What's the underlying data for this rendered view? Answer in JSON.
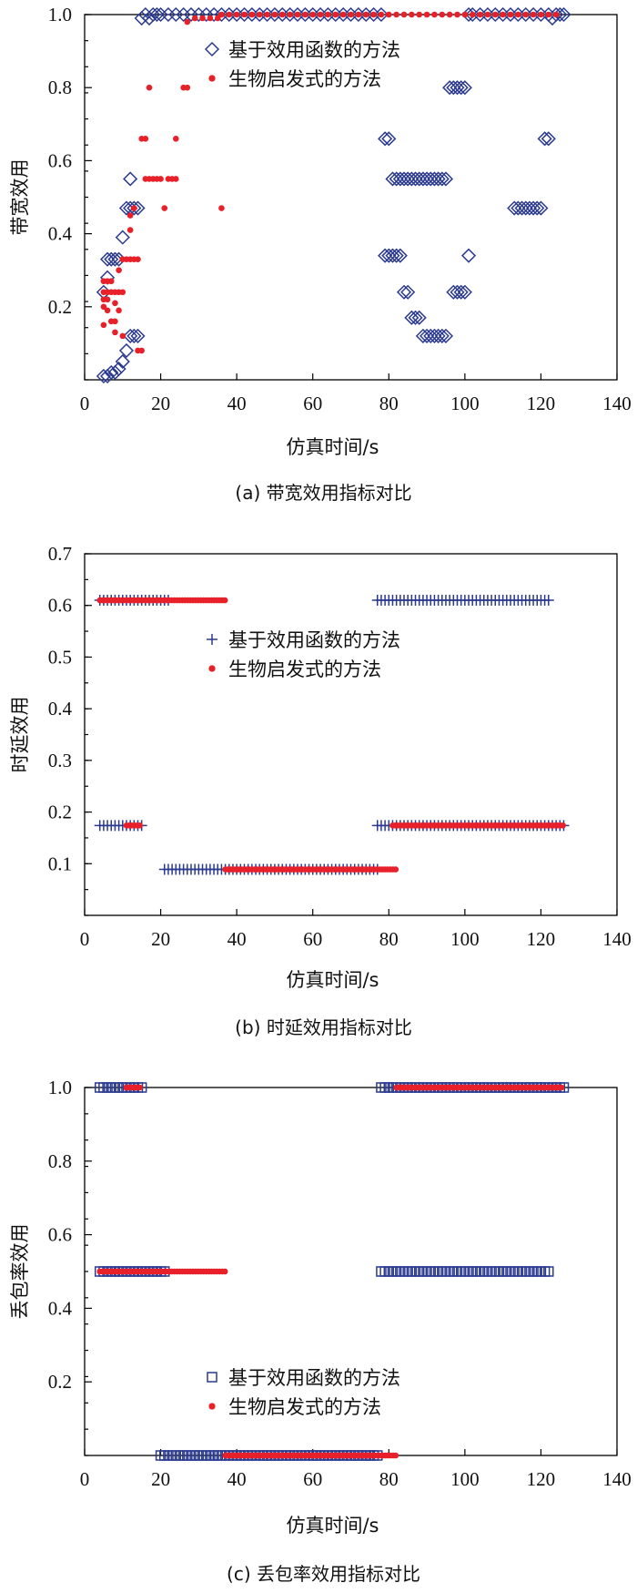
{
  "chart_data": [
    {
      "type": "scatter",
      "panel": "a",
      "caption": "(a) 带宽效用指标对比",
      "xlabel": "仿真时间/s",
      "ylabel": "带宽效用",
      "xlim": [
        0,
        140
      ],
      "ylim": [
        0,
        1.0
      ],
      "xticks": [
        "0",
        "20",
        "40",
        "60",
        "80",
        "100",
        "120",
        "140"
      ],
      "yticks": [
        "0.2",
        "0.4",
        "0.6",
        "0.8",
        "1.0"
      ],
      "yticks_values": [
        0.2,
        0.4,
        0.6,
        0.8,
        1.0
      ],
      "legend_position": "top-center",
      "series": [
        {
          "name": "基于效用函数的方法",
          "marker": "diamond",
          "color": "#2b3a8f",
          "points": [
            [
              5,
              0.01
            ],
            [
              6,
              0.01
            ],
            [
              7,
              0.02
            ],
            [
              8,
              0.02
            ],
            [
              9,
              0.03
            ],
            [
              10,
              0.05
            ],
            [
              11,
              0.08
            ],
            [
              12,
              0.12
            ],
            [
              13,
              0.12
            ],
            [
              14,
              0.12
            ],
            [
              5,
              0.24
            ],
            [
              6,
              0.28
            ],
            [
              6,
              0.33
            ],
            [
              7,
              0.33
            ],
            [
              8,
              0.33
            ],
            [
              9,
              0.33
            ],
            [
              10,
              0.39
            ],
            [
              11,
              0.47
            ],
            [
              12,
              0.47
            ],
            [
              13,
              0.47
            ],
            [
              14,
              0.47
            ],
            [
              12,
              0.55
            ],
            [
              15,
              0.99
            ],
            [
              16,
              1.0
            ],
            [
              17,
              0.99
            ],
            [
              18,
              1.0
            ],
            [
              19,
              1.0
            ],
            [
              20,
              1.0
            ],
            [
              22,
              1.0
            ],
            [
              24,
              1.0
            ],
            [
              26,
              1.0
            ],
            [
              28,
              1.0
            ],
            [
              30,
              1.0
            ],
            [
              32,
              1.0
            ],
            [
              34,
              1.0
            ],
            [
              36,
              1.0
            ],
            [
              38,
              1.0
            ],
            [
              40,
              1.0
            ],
            [
              42,
              1.0
            ],
            [
              44,
              1.0
            ],
            [
              46,
              1.0
            ],
            [
              48,
              1.0
            ],
            [
              50,
              1.0
            ],
            [
              52,
              1.0
            ],
            [
              54,
              1.0
            ],
            [
              56,
              1.0
            ],
            [
              58,
              1.0
            ],
            [
              60,
              1.0
            ],
            [
              62,
              1.0
            ],
            [
              64,
              1.0
            ],
            [
              66,
              1.0
            ],
            [
              68,
              1.0
            ],
            [
              70,
              1.0
            ],
            [
              72,
              1.0
            ],
            [
              74,
              1.0
            ],
            [
              76,
              1.0
            ],
            [
              78,
              1.0
            ],
            [
              79,
              0.66
            ],
            [
              80,
              0.66
            ],
            [
              79,
              0.34
            ],
            [
              80,
              0.34
            ],
            [
              81,
              0.34
            ],
            [
              82,
              0.34
            ],
            [
              83,
              0.34
            ],
            [
              81,
              0.55
            ],
            [
              82,
              0.55
            ],
            [
              83,
              0.55
            ],
            [
              84,
              0.55
            ],
            [
              85,
              0.55
            ],
            [
              86,
              0.55
            ],
            [
              87,
              0.55
            ],
            [
              88,
              0.55
            ],
            [
              89,
              0.55
            ],
            [
              90,
              0.55
            ],
            [
              91,
              0.55
            ],
            [
              92,
              0.55
            ],
            [
              93,
              0.55
            ],
            [
              94,
              0.55
            ],
            [
              95,
              0.55
            ],
            [
              84,
              0.24
            ],
            [
              85,
              0.24
            ],
            [
              86,
              0.17
            ],
            [
              87,
              0.17
            ],
            [
              88,
              0.17
            ],
            [
              89,
              0.12
            ],
            [
              90,
              0.12
            ],
            [
              91,
              0.12
            ],
            [
              92,
              0.12
            ],
            [
              93,
              0.12
            ],
            [
              94,
              0.12
            ],
            [
              95,
              0.12
            ],
            [
              96,
              0.8
            ],
            [
              97,
              0.8
            ],
            [
              98,
              0.8
            ],
            [
              99,
              0.8
            ],
            [
              100,
              0.8
            ],
            [
              97,
              0.24
            ],
            [
              98,
              0.24
            ],
            [
              99,
              0.24
            ],
            [
              100,
              0.24
            ],
            [
              101,
              0.34
            ],
            [
              101,
              1.0
            ],
            [
              102,
              1.0
            ],
            [
              104,
              1.0
            ],
            [
              106,
              1.0
            ],
            [
              108,
              1.0
            ],
            [
              110,
              1.0
            ],
            [
              112,
              1.0
            ],
            [
              114,
              1.0
            ],
            [
              116,
              1.0
            ],
            [
              118,
              1.0
            ],
            [
              120,
              1.0
            ],
            [
              122,
              1.0
            ],
            [
              123,
              0.99
            ],
            [
              124,
              1.0
            ],
            [
              125,
              1.0
            ],
            [
              126,
              1.0
            ],
            [
              113,
              0.47
            ],
            [
              114,
              0.47
            ],
            [
              115,
              0.47
            ],
            [
              116,
              0.47
            ],
            [
              117,
              0.47
            ],
            [
              118,
              0.47
            ],
            [
              119,
              0.47
            ],
            [
              120,
              0.47
            ],
            [
              121,
              0.66
            ],
            [
              122,
              0.66
            ]
          ]
        },
        {
          "name": "生物启发式的方法",
          "marker": "star",
          "color": "#e8202a",
          "points": [
            [
              5,
              0.15
            ],
            [
              5,
              0.2
            ],
            [
              5,
              0.22
            ],
            [
              5,
              0.24
            ],
            [
              5,
              0.27
            ],
            [
              6,
              0.19
            ],
            [
              6,
              0.22
            ],
            [
              6,
              0.24
            ],
            [
              6,
              0.27
            ],
            [
              7,
              0.16
            ],
            [
              7,
              0.24
            ],
            [
              7,
              0.27
            ],
            [
              8,
              0.13
            ],
            [
              8,
              0.16
            ],
            [
              8,
              0.21
            ],
            [
              8,
              0.24
            ],
            [
              9,
              0.19
            ],
            [
              9,
              0.24
            ],
            [
              9,
              0.3
            ],
            [
              10,
              0.12
            ],
            [
              10,
              0.24
            ],
            [
              10,
              0.33
            ],
            [
              11,
              0.33
            ],
            [
              12,
              0.33
            ],
            [
              12,
              0.41
            ],
            [
              12,
              0.45
            ],
            [
              13,
              0.33
            ],
            [
              13,
              0.47
            ],
            [
              14,
              0.08
            ],
            [
              14,
              0.33
            ],
            [
              15,
              0.08
            ],
            [
              15,
              0.66
            ],
            [
              16,
              0.55
            ],
            [
              16,
              0.66
            ],
            [
              17,
              0.55
            ],
            [
              18,
              0.55
            ],
            [
              19,
              0.55
            ],
            [
              20,
              0.55
            ],
            [
              21,
              0.47
            ],
            [
              22,
              0.55
            ],
            [
              23,
              0.55
            ],
            [
              24,
              0.55
            ],
            [
              24,
              0.66
            ],
            [
              26,
              0.8
            ],
            [
              27,
              0.8
            ],
            [
              17,
              0.8
            ],
            [
              36,
              0.47
            ],
            [
              27,
              0.98
            ],
            [
              29,
              0.99
            ],
            [
              31,
              0.99
            ],
            [
              33,
              0.99
            ],
            [
              35,
              0.99
            ],
            [
              36,
              1.0
            ],
            [
              38,
              1.0
            ],
            [
              40,
              1.0
            ],
            [
              42,
              1.0
            ],
            [
              44,
              1.0
            ],
            [
              46,
              1.0
            ],
            [
              48,
              1.0
            ],
            [
              50,
              1.0
            ],
            [
              52,
              1.0
            ],
            [
              54,
              1.0
            ],
            [
              56,
              1.0
            ],
            [
              58,
              1.0
            ],
            [
              60,
              1.0
            ],
            [
              62,
              1.0
            ],
            [
              64,
              1.0
            ],
            [
              66,
              1.0
            ],
            [
              68,
              1.0
            ],
            [
              70,
              1.0
            ],
            [
              72,
              1.0
            ],
            [
              74,
              1.0
            ],
            [
              76,
              1.0
            ],
            [
              78,
              1.0
            ],
            [
              80,
              1.0
            ],
            [
              82,
              1.0
            ],
            [
              84,
              1.0
            ],
            [
              86,
              1.0
            ],
            [
              88,
              1.0
            ],
            [
              90,
              1.0
            ],
            [
              92,
              1.0
            ],
            [
              94,
              1.0
            ],
            [
              96,
              1.0
            ],
            [
              98,
              1.0
            ],
            [
              100,
              1.0
            ],
            [
              102,
              1.0
            ],
            [
              104,
              1.0
            ],
            [
              106,
              1.0
            ],
            [
              108,
              1.0
            ],
            [
              110,
              1.0
            ],
            [
              112,
              1.0
            ],
            [
              114,
              1.0
            ],
            [
              116,
              1.0
            ],
            [
              118,
              1.0
            ],
            [
              120,
              1.0
            ],
            [
              122,
              1.0
            ],
            [
              124,
              1.0
            ]
          ]
        }
      ]
    },
    {
      "type": "scatter",
      "panel": "b",
      "caption": "(b) 时延效用指标对比",
      "xlabel": "仿真时间/s",
      "ylabel": "时延效用",
      "xlim": [
        0,
        140
      ],
      "ylim": [
        0,
        0.7
      ],
      "xticks": [
        "0",
        "20",
        "40",
        "60",
        "80",
        "100",
        "120",
        "140"
      ],
      "yticks": [
        "0.1",
        "0.2",
        "0.3",
        "0.4",
        "0.5",
        "0.6",
        "0.7"
      ],
      "yticks_values": [
        0.1,
        0.2,
        0.3,
        0.4,
        0.5,
        0.6,
        0.7
      ],
      "legend_position": "center",
      "series": [
        {
          "name": "基于效用函数的方法",
          "marker": "plus",
          "color": "#2b3a8f",
          "segments": [
            {
              "x": [
                4,
                22
              ],
              "y": 0.61
            },
            {
              "x": [
                4,
                15
              ],
              "y": 0.174
            },
            {
              "x": [
                21,
                77
              ],
              "y": 0.089
            },
            {
              "x": [
                77,
                122
              ],
              "y": 0.61
            },
            {
              "x": [
                77,
                126
              ],
              "y": 0.174
            }
          ]
        },
        {
          "name": "生物启发式的方法",
          "marker": "star",
          "color": "#e8202a",
          "segments": [
            {
              "x": [
                4,
                37
              ],
              "y": 0.61
            },
            {
              "x": [
                11,
                15
              ],
              "y": 0.174
            },
            {
              "x": [
                37,
                82
              ],
              "y": 0.089
            },
            {
              "x": [
                81,
                126
              ],
              "y": 0.174
            }
          ]
        }
      ]
    },
    {
      "type": "scatter",
      "panel": "c",
      "caption": "(c) 丢包率效用指标对比",
      "xlabel": "仿真时间/s",
      "ylabel": "丢包率效用",
      "xlim": [
        0,
        140
      ],
      "ylim": [
        0,
        1.0
      ],
      "xticks": [
        "0",
        "20",
        "40",
        "60",
        "80",
        "100",
        "120",
        "140"
      ],
      "yticks": [
        "0.2",
        "0.4",
        "0.6",
        "0.8",
        "1.0"
      ],
      "yticks_values": [
        0.2,
        0.4,
        0.6,
        0.8,
        1.0
      ],
      "legend_position": "bottom-center",
      "series": [
        {
          "name": "基于效用函数的方法",
          "marker": "square",
          "color": "#2b3a8f",
          "segments": [
            {
              "x": [
                4,
                15
              ],
              "y": 1.0
            },
            {
              "x": [
                4,
                21
              ],
              "y": 0.5
            },
            {
              "x": [
                20,
                77
              ],
              "y": 0.0
            },
            {
              "x": [
                78,
                126
              ],
              "y": 1.0
            },
            {
              "x": [
                78,
                122
              ],
              "y": 0.5
            }
          ]
        },
        {
          "name": "生物启发式的方法",
          "marker": "star",
          "color": "#e8202a",
          "segments": [
            {
              "x": [
                11,
                15
              ],
              "y": 1.0
            },
            {
              "x": [
                4,
                37
              ],
              "y": 0.5
            },
            {
              "x": [
                37,
                82
              ],
              "y": 0.0
            },
            {
              "x": [
                82,
                126
              ],
              "y": 1.0
            }
          ]
        }
      ]
    }
  ]
}
